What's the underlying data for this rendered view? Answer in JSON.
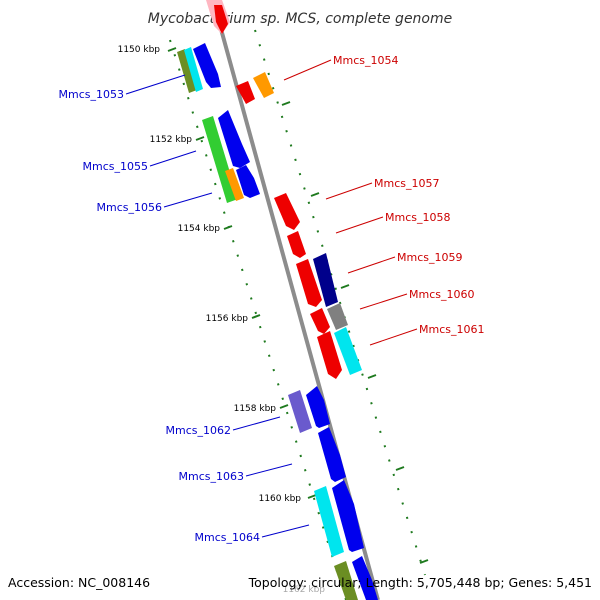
{
  "title": "Mycobacterium sp. MCS, complete genome",
  "footer": {
    "accession": "Accession: NC_008146",
    "topology": "Topology: circular; Length: 5,705,448 bp; Genes: 5,451"
  },
  "colors": {
    "backbone": "#8c8c8c",
    "tick": "#1e7a1e",
    "left_label": "#0000cc",
    "right_label": "#cc0000"
  },
  "scale_ticks": [
    {
      "label": "1150 kbp",
      "kbp": 1150
    },
    {
      "label": "1152 kbp",
      "kbp": 1152
    },
    {
      "label": "1154 kbp",
      "kbp": 1154
    },
    {
      "label": "1156 kbp",
      "kbp": 1156
    },
    {
      "label": "1158 kbp",
      "kbp": 1158
    },
    {
      "label": "1160 kbp",
      "kbp": 1160
    },
    {
      "label": "1162 kbp",
      "kbp": 1162
    }
  ],
  "left_genes": [
    {
      "label": "Mmcs_1053",
      "color": "#0000ee"
    },
    {
      "label": "Mmcs_1055",
      "color": "#0000ee"
    },
    {
      "label": "Mmcs_1056",
      "color": "#0000ee"
    },
    {
      "label": "Mmcs_1062",
      "color": "#0000ee"
    },
    {
      "label": "Mmcs_1063",
      "color": "#0000ee"
    },
    {
      "label": "Mmcs_1064",
      "color": "#0000ee"
    }
  ],
  "right_genes": [
    {
      "label": "Mmcs_1054",
      "color": "#ee0000"
    },
    {
      "label": "Mmcs_1057",
      "color": "#ee0000"
    },
    {
      "label": "Mmcs_1058",
      "color": "#ee0000"
    },
    {
      "label": "Mmcs_1059",
      "color": "#ee0000"
    },
    {
      "label": "Mmcs_1060",
      "color": "#ee0000"
    },
    {
      "label": "Mmcs_1061",
      "color": "#ee0000"
    }
  ],
  "cog_colors": {
    "olive": "#6b8e23",
    "cyan": "#00e5ee",
    "green": "#32cd32",
    "orange": "#ff9900",
    "navy": "#00008b",
    "gray": "#808080",
    "purple": "#6a5acd",
    "pink": "#ffb6c1"
  }
}
